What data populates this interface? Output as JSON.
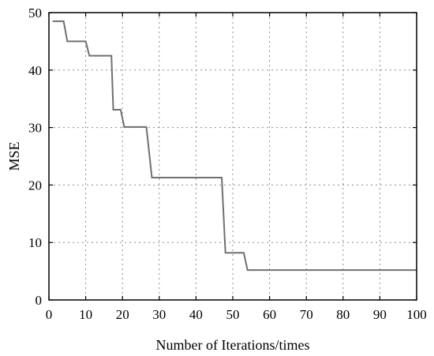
{
  "chart_data": {
    "type": "line",
    "title": "",
    "xlabel": "Number of Iterations/times",
    "ylabel": "MSE",
    "xlim": [
      0,
      100
    ],
    "ylim": [
      0,
      50
    ],
    "xticks": [
      0,
      10,
      20,
      30,
      40,
      50,
      60,
      70,
      80,
      90,
      100
    ],
    "yticks": [
      0,
      10,
      20,
      30,
      40,
      50
    ],
    "grid": true,
    "legend": "none",
    "line_color": "#707070",
    "series": [
      {
        "x": [
          1,
          4,
          5,
          10,
          11,
          17,
          17.5,
          19.5,
          20.5,
          26.5,
          28,
          47,
          48,
          53,
          54,
          100
        ],
        "y": [
          48.5,
          48.5,
          45,
          45,
          42.5,
          42.5,
          33.1,
          33.1,
          30.1,
          30.1,
          21.3,
          21.3,
          8.2,
          8.2,
          5.2,
          5.2
        ]
      }
    ]
  }
}
